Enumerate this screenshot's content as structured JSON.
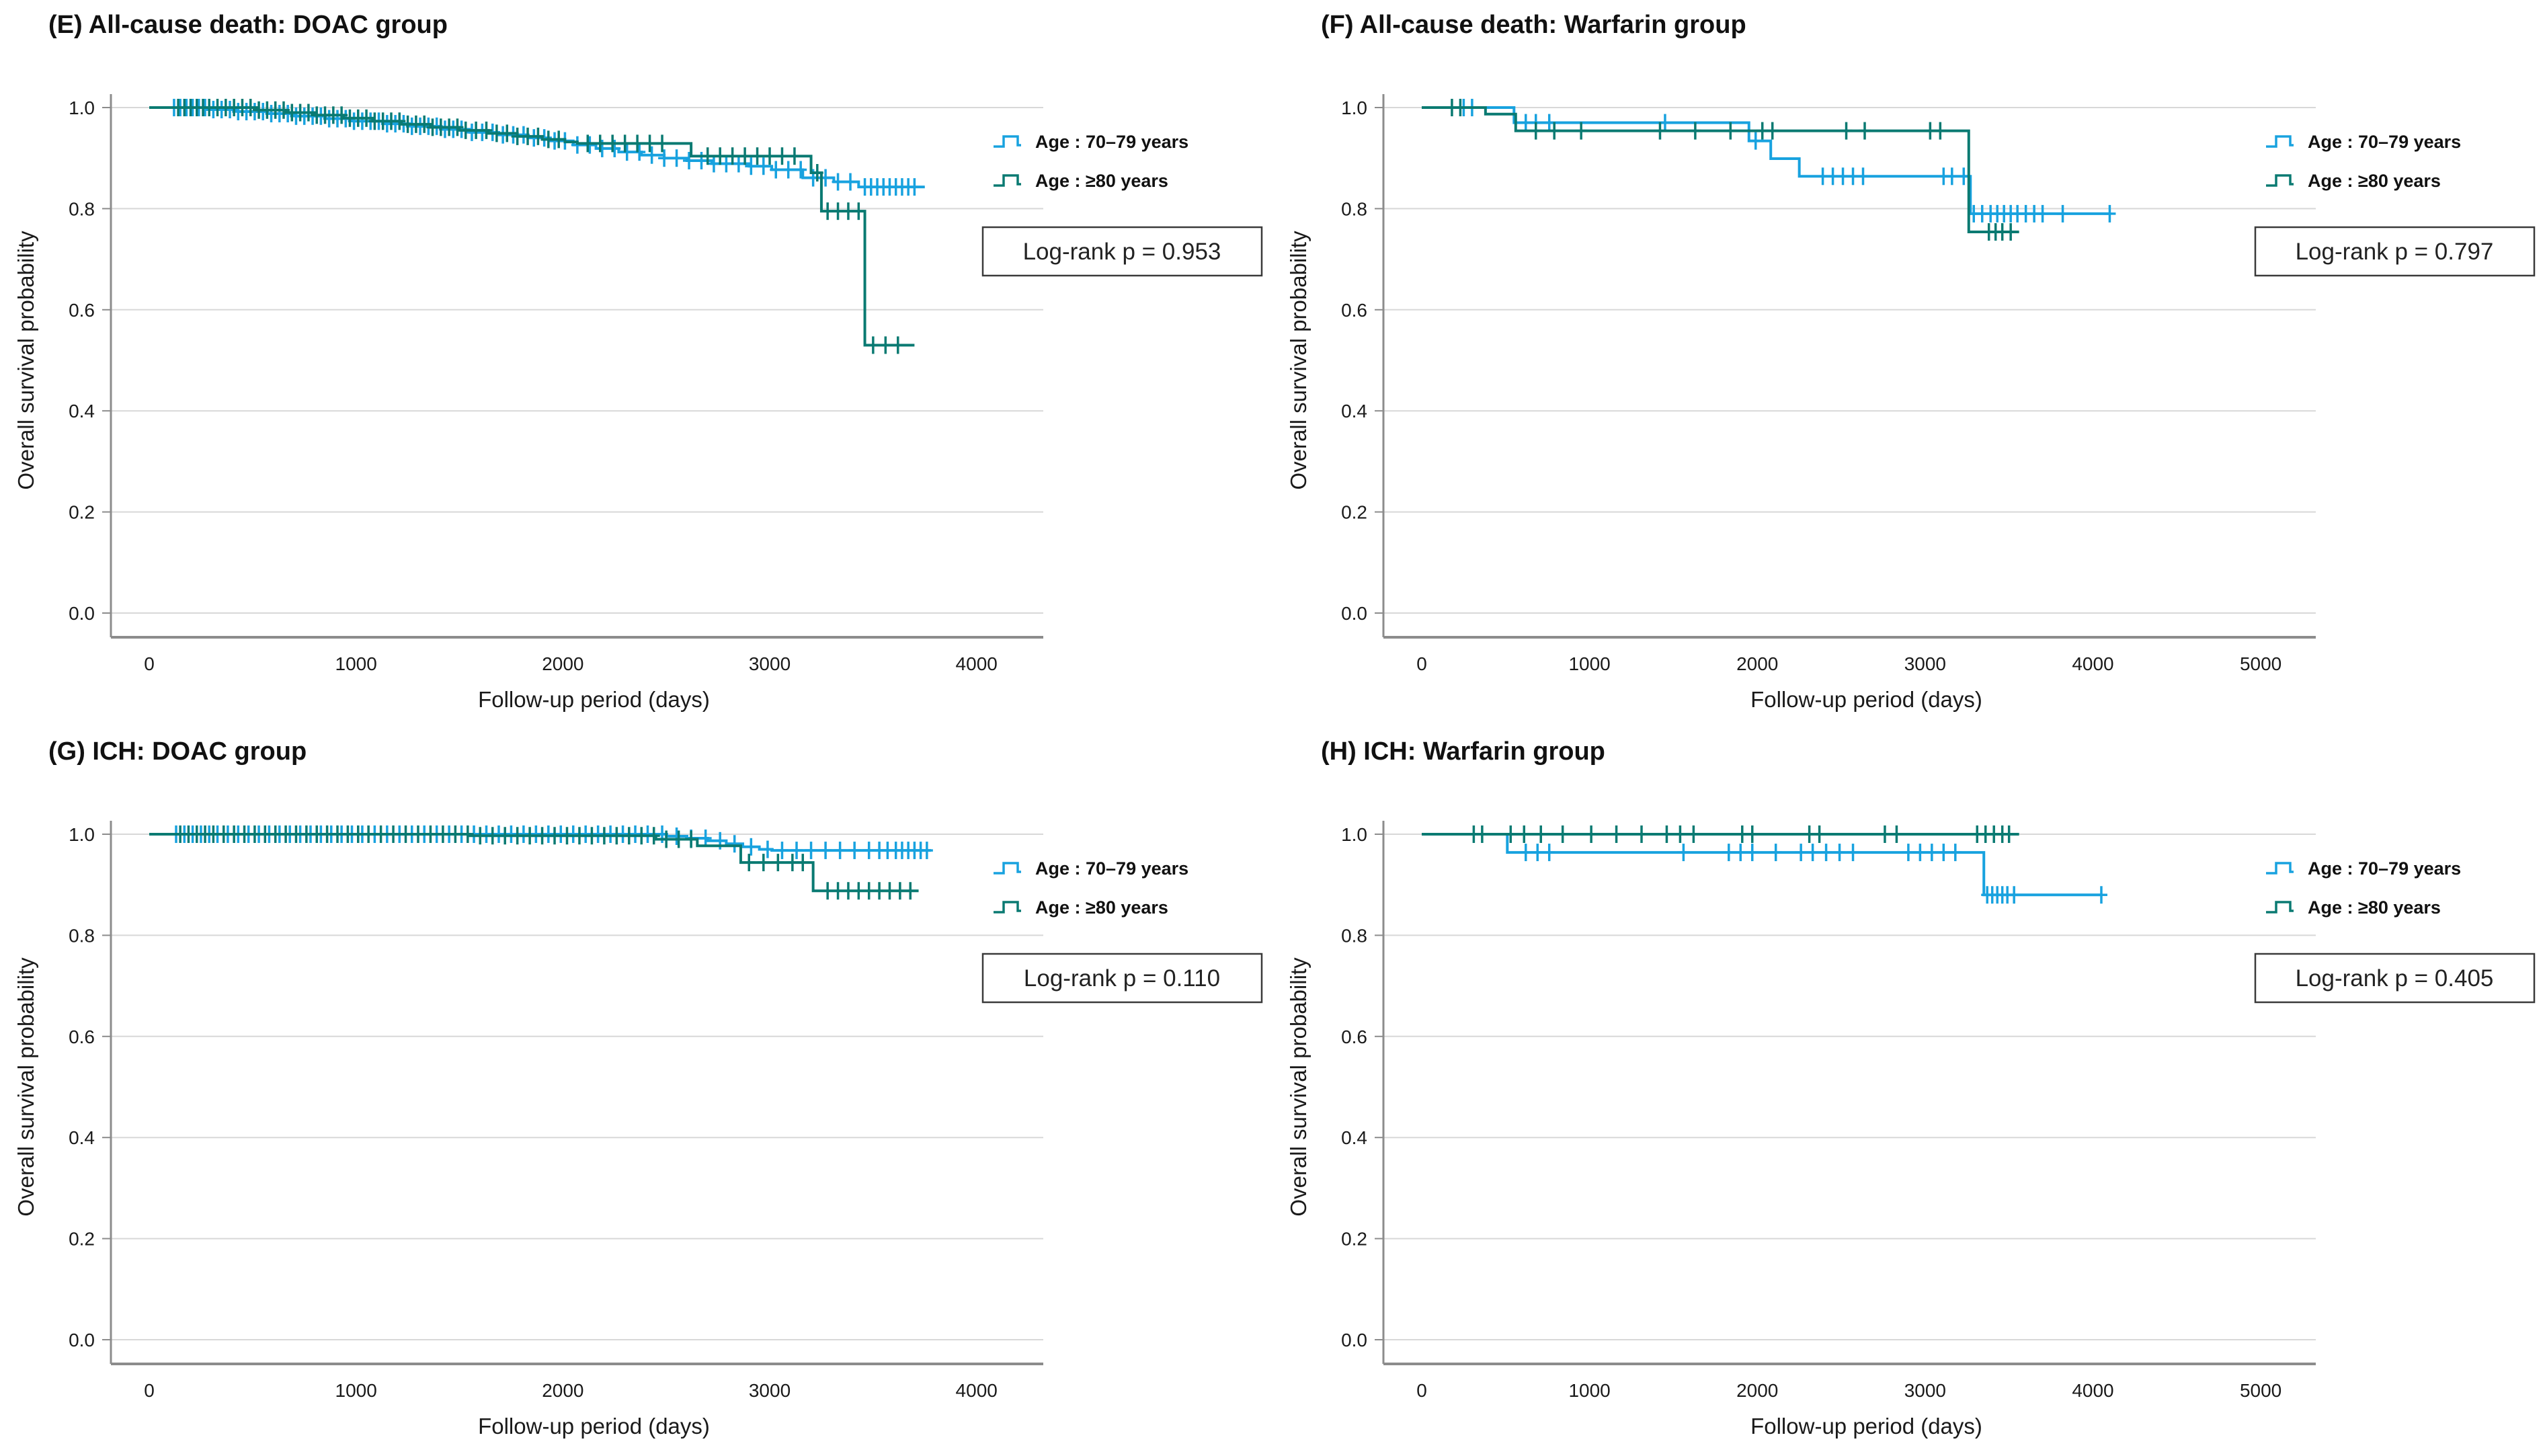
{
  "figure": {
    "background": "#ffffff",
    "accent_blue": "#18a2df",
    "accent_teal": "#0a7a72",
    "grid_color": "#d8d8d8",
    "axis_color": "#8c8c8c",
    "text_color": "#1a1a1a"
  },
  "chart_data": [
    {
      "id": "E",
      "type": "line",
      "subtype": "kaplan-meier-step",
      "title": "(E) All-cause death: DOAC group",
      "xlabel": "Follow-up period (days)",
      "ylabel": "Overall survival probability",
      "x_ticks": [
        0,
        1000,
        2000,
        3000,
        4000
      ],
      "y_ticks": [
        0.0,
        0.2,
        0.4,
        0.6,
        0.8,
        1.0
      ],
      "xlim": [
        0,
        4300
      ],
      "ylim": [
        0.0,
        1.0
      ],
      "grid": true,
      "legend_position": "right-top",
      "log_rank_label": "Log-rank p = 0.953",
      "series": [
        {
          "name": "Age : 70–79 years",
          "color": "#18a2df",
          "steps": [
            [
              0,
              1.0
            ],
            [
              270,
              1.0
            ],
            [
              280,
              0.996
            ],
            [
              430,
              0.992
            ],
            [
              570,
              0.988
            ],
            [
              710,
              0.983
            ],
            [
              850,
              0.978
            ],
            [
              990,
              0.973
            ],
            [
              1130,
              0.968
            ],
            [
              1270,
              0.963
            ],
            [
              1410,
              0.957
            ],
            [
              1550,
              0.951
            ],
            [
              1690,
              0.946
            ],
            [
              1830,
              0.94
            ],
            [
              1940,
              0.934
            ],
            [
              2050,
              0.926
            ],
            [
              2160,
              0.919
            ],
            [
              2270,
              0.912
            ],
            [
              2380,
              0.906
            ],
            [
              2490,
              0.9
            ],
            [
              2600,
              0.895
            ],
            [
              2720,
              0.889
            ],
            [
              2900,
              0.884
            ],
            [
              3010,
              0.877
            ],
            [
              3160,
              0.861
            ],
            [
              3310,
              0.853
            ],
            [
              3430,
              0.843
            ],
            [
              3750,
              0.843
            ]
          ],
          "censors": [
            120,
            150,
            180,
            210,
            240,
            270,
            310,
            350,
            390,
            430,
            470,
            510,
            550,
            590,
            630,
            670,
            710,
            750,
            790,
            830,
            870,
            910,
            950,
            990,
            1030,
            1070,
            1110,
            1150,
            1190,
            1230,
            1270,
            1310,
            1350,
            1390,
            1430,
            1470,
            1510,
            1560,
            1610,
            1660,
            1710,
            1760,
            1810,
            1860,
            1910,
            1960,
            2010,
            2070,
            2130,
            2190,
            2250,
            2310,
            2370,
            2430,
            2490,
            2550,
            2610,
            2670,
            2730,
            2790,
            2850,
            2910,
            2970,
            3030,
            3090,
            3150,
            3210,
            3270,
            3330,
            3390,
            3460,
            3490,
            3520,
            3550,
            3580,
            3610,
            3640,
            3670,
            3700
          ]
        },
        {
          "name": "Age : ≥80 years",
          "color": "#0a7a72",
          "steps": [
            [
              0,
              1.0
            ],
            [
              430,
              1.0
            ],
            [
              520,
              0.995
            ],
            [
              660,
              0.99
            ],
            [
              800,
              0.985
            ],
            [
              940,
              0.979
            ],
            [
              1080,
              0.973
            ],
            [
              1220,
              0.967
            ],
            [
              1360,
              0.961
            ],
            [
              1500,
              0.955
            ],
            [
              1640,
              0.949
            ],
            [
              1780,
              0.943
            ],
            [
              1900,
              0.937
            ],
            [
              2010,
              0.932
            ],
            [
              2070,
              0.929
            ],
            [
              2560,
              0.929
            ],
            [
              2620,
              0.904
            ],
            [
              3150,
              0.904
            ],
            [
              3200,
              0.871
            ],
            [
              3250,
              0.795
            ],
            [
              3450,
              0.795
            ],
            [
              3460,
              0.53
            ],
            [
              3700,
              0.53
            ]
          ],
          "censors": [
            140,
            170,
            200,
            230,
            260,
            290,
            330,
            370,
            410,
            450,
            490,
            530,
            570,
            610,
            650,
            690,
            730,
            770,
            810,
            850,
            890,
            930,
            970,
            1010,
            1050,
            1090,
            1130,
            1170,
            1210,
            1250,
            1290,
            1330,
            1370,
            1410,
            1450,
            1490,
            1530,
            1580,
            1630,
            1680,
            1730,
            1780,
            1830,
            1880,
            1930,
            1980,
            2120,
            2180,
            2240,
            2300,
            2360,
            2420,
            2480,
            2700,
            2760,
            2820,
            2880,
            2940,
            3000,
            3060,
            3120,
            3230,
            3280,
            3330,
            3380,
            3430,
            3500,
            3560,
            3620
          ]
        }
      ]
    },
    {
      "id": "F",
      "type": "line",
      "subtype": "kaplan-meier-step",
      "title": "(F) All-cause death: Warfarin group",
      "xlabel": "Follow-up period (days)",
      "ylabel": "Overall survival probability",
      "x_ticks": [
        0,
        1000,
        2000,
        3000,
        4000,
        5000
      ],
      "y_ticks": [
        0.0,
        0.2,
        0.4,
        0.6,
        0.8,
        1.0
      ],
      "xlim": [
        0,
        5300
      ],
      "ylim": [
        0.0,
        1.0
      ],
      "grid": true,
      "legend_position": "right-top",
      "log_rank_label": "Log-rank p = 0.797",
      "series": [
        {
          "name": "Age : 70–79 years",
          "color": "#18a2df",
          "steps": [
            [
              0,
              1.0
            ],
            [
              540,
              1.0
            ],
            [
              550,
              0.97
            ],
            [
              1940,
              0.97
            ],
            [
              1950,
              0.934
            ],
            [
              2070,
              0.934
            ],
            [
              2080,
              0.899
            ],
            [
              2240,
              0.899
            ],
            [
              2250,
              0.864
            ],
            [
              3260,
              0.864
            ],
            [
              3270,
              0.79
            ],
            [
              4100,
              0.79
            ]
          ],
          "censors": [
            250,
            300,
            620,
            680,
            760,
            1450,
            1990,
            2390,
            2450,
            2510,
            2570,
            2630,
            3110,
            3160,
            3230,
            3290,
            3340,
            3390,
            3430,
            3470,
            3510,
            3550,
            3600,
            3650,
            3700,
            3820,
            4100
          ]
        },
        {
          "name": "Age : ≥80 years",
          "color": "#0a7a72",
          "steps": [
            [
              0,
              1.0
            ],
            [
              370,
              1.0
            ],
            [
              380,
              0.987
            ],
            [
              550,
              0.987
            ],
            [
              560,
              0.954
            ],
            [
              3250,
              0.954
            ],
            [
              3260,
              0.754
            ],
            [
              3560,
              0.754
            ]
          ],
          "censors": [
            180,
            230,
            680,
            790,
            950,
            1420,
            1630,
            1840,
            2030,
            2090,
            2530,
            2640,
            3030,
            3090,
            3380,
            3420,
            3460,
            3510
          ]
        }
      ]
    },
    {
      "id": "G",
      "type": "line",
      "subtype": "kaplan-meier-step",
      "title": "(G) ICH: DOAC group",
      "xlabel": "Follow-up period (days)",
      "ylabel": "Overall survival probability",
      "x_ticks": [
        0,
        1000,
        2000,
        3000,
        4000
      ],
      "y_ticks": [
        0.0,
        0.2,
        0.4,
        0.6,
        0.8,
        1.0
      ],
      "xlim": [
        0,
        4300
      ],
      "ylim": [
        0.0,
        1.0
      ],
      "grid": true,
      "legend_position": "right-top",
      "log_rank_label": "Log-rank p = 0.110",
      "series": [
        {
          "name": "Age : 70–79 years",
          "color": "#18a2df",
          "steps": [
            [
              0,
              1.0
            ],
            [
              2450,
              1.0
            ],
            [
              2500,
              0.996
            ],
            [
              2600,
              0.992
            ],
            [
              2700,
              0.987
            ],
            [
              2790,
              0.981
            ],
            [
              2870,
              0.975
            ],
            [
              2950,
              0.97
            ],
            [
              3010,
              0.968
            ],
            [
              3780,
              0.968
            ]
          ],
          "censors": [
            130,
            170,
            210,
            250,
            290,
            330,
            380,
            430,
            480,
            530,
            580,
            630,
            680,
            730,
            780,
            830,
            880,
            930,
            980,
            1030,
            1090,
            1150,
            1210,
            1270,
            1330,
            1390,
            1450,
            1510,
            1570,
            1630,
            1690,
            1750,
            1810,
            1870,
            1930,
            1990,
            2050,
            2110,
            2170,
            2230,
            2290,
            2350,
            2410,
            2480,
            2550,
            2620,
            2690,
            2760,
            2830,
            2910,
            2990,
            3060,
            3130,
            3200,
            3270,
            3340,
            3410,
            3480,
            3530,
            3570,
            3610,
            3640,
            3670,
            3700,
            3730,
            3760
          ]
        },
        {
          "name": "Age : ≥80 years",
          "color": "#0a7a72",
          "steps": [
            [
              0,
              1.0
            ],
            [
              1520,
              1.0
            ],
            [
              1550,
              0.997
            ],
            [
              2420,
              0.997
            ],
            [
              2450,
              0.99
            ],
            [
              2620,
              0.99
            ],
            [
              2650,
              0.977
            ],
            [
              2830,
              0.977
            ],
            [
              2860,
              0.944
            ],
            [
              3180,
              0.944
            ],
            [
              3210,
              0.888
            ],
            [
              3720,
              0.888
            ]
          ],
          "censors": [
            150,
            190,
            230,
            270,
            310,
            360,
            410,
            460,
            510,
            560,
            610,
            660,
            710,
            760,
            810,
            860,
            910,
            960,
            1010,
            1060,
            1120,
            1180,
            1240,
            1300,
            1360,
            1420,
            1480,
            1540,
            1600,
            1660,
            1720,
            1780,
            1840,
            1900,
            1960,
            2020,
            2080,
            2140,
            2200,
            2260,
            2320,
            2380,
            2440,
            2500,
            2560,
            2620,
            2900,
            2970,
            3040,
            3110,
            3160,
            3280,
            3330,
            3380,
            3430,
            3480,
            3530,
            3580,
            3630,
            3680
          ]
        }
      ]
    },
    {
      "id": "H",
      "type": "line",
      "subtype": "kaplan-meier-step",
      "title": "(H) ICH: Warfarin group",
      "xlabel": "Follow-up period (days)",
      "ylabel": "Overall survival probability",
      "x_ticks": [
        0,
        1000,
        2000,
        3000,
        4000,
        5000
      ],
      "y_ticks": [
        0.0,
        0.2,
        0.4,
        0.6,
        0.8,
        1.0
      ],
      "xlim": [
        0,
        5300
      ],
      "ylim": [
        0.0,
        1.0
      ],
      "grid": true,
      "legend_position": "right-top",
      "log_rank_label": "Log-rank p = 0.405",
      "series": [
        {
          "name": "Age : 70–79 years",
          "color": "#18a2df",
          "steps": [
            [
              0,
              1.0
            ],
            [
              500,
              1.0
            ],
            [
              510,
              0.964
            ],
            [
              3340,
              0.964
            ],
            [
              3350,
              0.88
            ],
            [
              4050,
              0.88
            ]
          ],
          "censors": [
            620,
            690,
            760,
            1560,
            1830,
            1900,
            1970,
            2110,
            2260,
            2330,
            2410,
            2490,
            2570,
            2900,
            2970,
            3040,
            3110,
            3180,
            3370,
            3400,
            3430,
            3460,
            3490,
            3530,
            4050
          ]
        },
        {
          "name": "Age : ≥80 years",
          "color": "#0a7a72",
          "steps": [
            [
              0,
              1.0
            ],
            [
              3560,
              1.0
            ]
          ],
          "censors": [
            310,
            360,
            530,
            610,
            710,
            840,
            1010,
            1160,
            1310,
            1460,
            1540,
            1620,
            1910,
            1970,
            2310,
            2370,
            2760,
            2830,
            3310,
            3360,
            3410,
            3460,
            3500
          ]
        }
      ]
    }
  ]
}
